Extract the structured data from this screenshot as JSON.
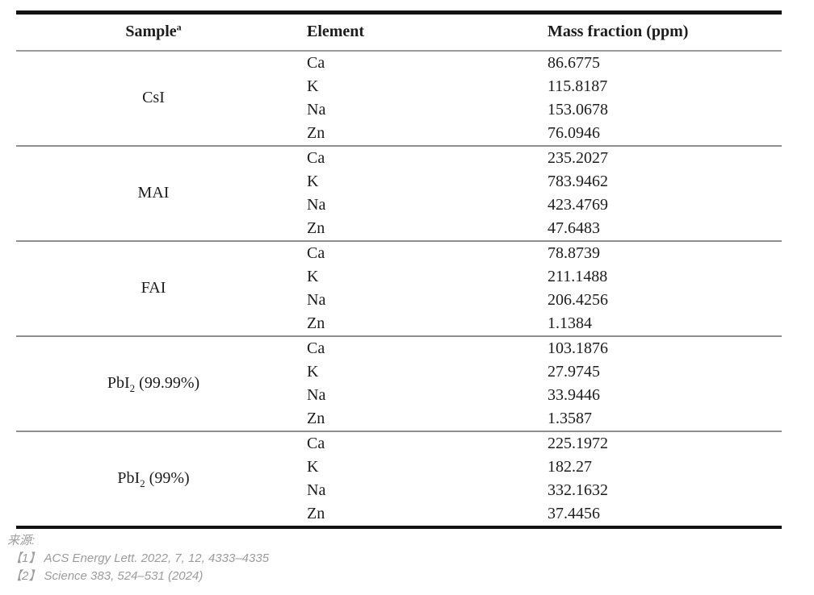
{
  "header": {
    "sample": "Sample",
    "sample_sup": "a",
    "element": "Element",
    "mass_fraction": "Mass fraction (ppm)"
  },
  "groups": [
    {
      "sample": {
        "prefix": "CsI",
        "sub": "",
        "suffix": ""
      },
      "rows": [
        {
          "element": "Ca",
          "value": "86.6775"
        },
        {
          "element": "K",
          "value": "115.8187"
        },
        {
          "element": "Na",
          "value": "153.0678"
        },
        {
          "element": "Zn",
          "value": "76.0946"
        }
      ]
    },
    {
      "sample": {
        "prefix": "MAI",
        "sub": "",
        "suffix": ""
      },
      "rows": [
        {
          "element": "Ca",
          "value": "235.2027"
        },
        {
          "element": "K",
          "value": "783.9462"
        },
        {
          "element": "Na",
          "value": "423.4769"
        },
        {
          "element": "Zn",
          "value": "47.6483"
        }
      ]
    },
    {
      "sample": {
        "prefix": "FAI",
        "sub": "",
        "suffix": ""
      },
      "rows": [
        {
          "element": "Ca",
          "value": "78.8739"
        },
        {
          "element": "K",
          "value": "211.1488"
        },
        {
          "element": "Na",
          "value": "206.4256"
        },
        {
          "element": "Zn",
          "value": "1.1384"
        }
      ]
    },
    {
      "sample": {
        "prefix": "PbI",
        "sub": "2",
        "suffix": " (99.99%)"
      },
      "rows": [
        {
          "element": "Ca",
          "value": "103.1876"
        },
        {
          "element": "K",
          "value": "27.9745"
        },
        {
          "element": "Na",
          "value": "33.9446"
        },
        {
          "element": "Zn",
          "value": "1.3587"
        }
      ]
    },
    {
      "sample": {
        "prefix": "PbI",
        "sub": "2",
        "suffix": " (99%)"
      },
      "rows": [
        {
          "element": "Ca",
          "value": "225.1972"
        },
        {
          "element": "K",
          "value": "182.27"
        },
        {
          "element": "Na",
          "value": "332.1632"
        },
        {
          "element": "Zn",
          "value": "37.4456"
        }
      ]
    }
  ],
  "footer": {
    "label": "来源:",
    "references": [
      "【1】 ACS Energy Lett. 2022, 7, 12, 4333–4335",
      "【2】 Science 383, 524–531 (2024)"
    ]
  },
  "colors": {
    "rule_heavy": "#121212",
    "rule_light": "#8f8f8f",
    "text": "#1c1c1c",
    "footer_text": "#9b9b9b"
  }
}
